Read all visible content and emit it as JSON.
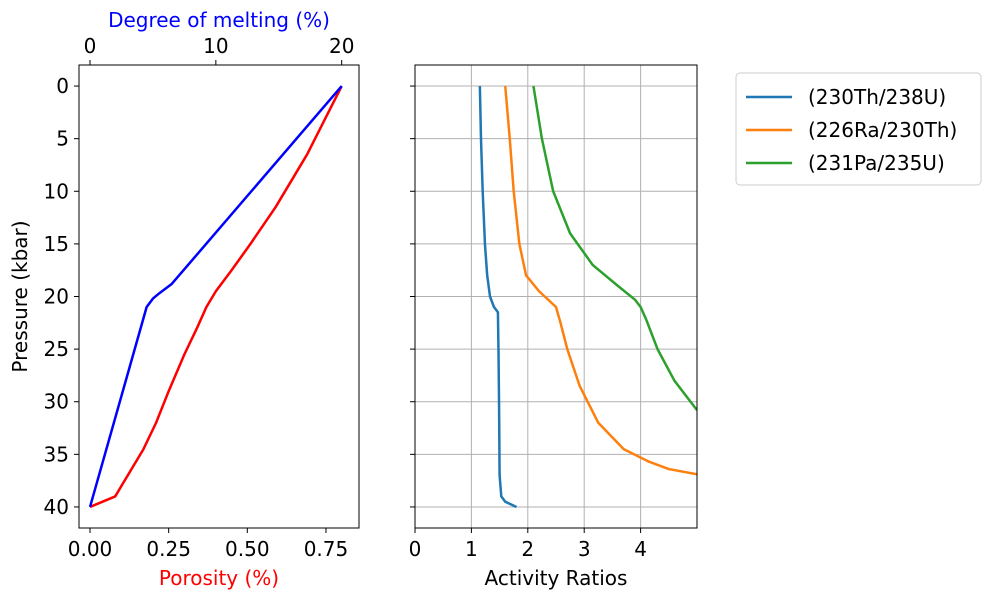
{
  "chart_data": [
    {
      "type": "line",
      "panel": "left",
      "ylabel": "Pressure (kbar)",
      "yticks": [
        0,
        5,
        10,
        15,
        20,
        25,
        30,
        35,
        40
      ],
      "ylim": [
        42,
        -2
      ],
      "bottom_axis": {
        "label": "Porosity (%)",
        "label_color": "#ff0000",
        "ticks": [
          0.0,
          0.25,
          0.5,
          0.75
        ],
        "tick_labels": [
          "0.00",
          "0.25",
          "0.50",
          "0.75"
        ],
        "xlim": [
          -0.035,
          0.855
        ]
      },
      "top_axis": {
        "label": "Degree of melting (%)",
        "label_color": "#0000ff",
        "ticks": [
          0,
          10,
          20
        ],
        "tick_labels": [
          "0",
          "10",
          "20"
        ],
        "xlim": [
          -0.875,
          21.375
        ]
      },
      "series": [
        {
          "name": "Porosity",
          "axis": "bottom",
          "color": "#ff0000",
          "x": [
            0.0,
            0.04,
            0.08,
            0.1,
            0.13,
            0.17,
            0.21,
            0.25,
            0.3,
            0.34,
            0.37,
            0.38,
            0.4,
            0.45,
            0.51,
            0.59,
            0.69,
            0.8
          ],
          "y": [
            40,
            39.5,
            39,
            38,
            36.5,
            34.5,
            32,
            29,
            25.5,
            23,
            21,
            20.5,
            19.5,
            17.5,
            15,
            11.5,
            6.5,
            0
          ]
        },
        {
          "name": "Degree of melting",
          "axis": "top",
          "color": "#0000ff",
          "x": [
            0.0,
            4.5,
            5.0,
            5.5,
            6.5,
            20.0
          ],
          "y": [
            40,
            21,
            20.2,
            19.7,
            18.8,
            0
          ]
        }
      ]
    },
    {
      "type": "line",
      "panel": "right",
      "xlabel": "Activity Ratios",
      "xticks": [
        0,
        1,
        2,
        3,
        4
      ],
      "xlim": [
        0,
        5
      ],
      "ylim": [
        42,
        -2
      ],
      "grid": true,
      "legend_position": "outside-right",
      "series": [
        {
          "name": "(230Th/238U)",
          "color": "#1f77b4",
          "x": [
            1.15,
            1.17,
            1.2,
            1.24,
            1.28,
            1.33,
            1.4,
            1.47,
            1.48,
            1.49,
            1.5,
            1.53,
            1.6,
            1.8
          ],
          "y": [
            0,
            5,
            10,
            15,
            18,
            20,
            21,
            21.5,
            25,
            30,
            37,
            39,
            39.5,
            40
          ]
        },
        {
          "name": "(226Ra/230Th)",
          "color": "#ff7f0e",
          "x": [
            1.6,
            1.68,
            1.75,
            1.85,
            1.97,
            2.2,
            2.5,
            2.58,
            2.7,
            2.92,
            3.25,
            3.7,
            4.15,
            4.5,
            5.0
          ],
          "y": [
            0,
            5,
            10,
            15,
            18,
            19.5,
            21,
            22.5,
            25,
            28.5,
            32,
            34.5,
            35.7,
            36.4,
            36.9
          ]
        },
        {
          "name": "(231Pa/235U)",
          "color": "#2ca02c",
          "x": [
            2.1,
            2.25,
            2.45,
            2.75,
            3.15,
            3.6,
            3.9,
            4.0,
            4.1,
            4.3,
            4.6,
            5.0
          ],
          "y": [
            0,
            5,
            10,
            14,
            17,
            19,
            20.3,
            21,
            22.2,
            25,
            28,
            30.8
          ]
        }
      ]
    }
  ]
}
